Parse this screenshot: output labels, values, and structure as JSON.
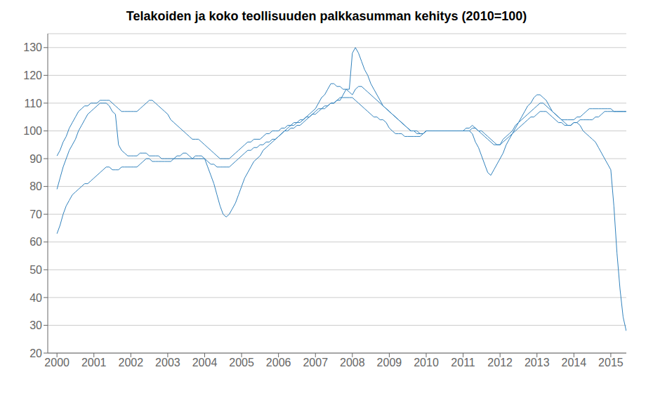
{
  "chart_data": {
    "type": "line",
    "title": "Telakoiden ja koko teollisuuden palkkasumman kehitys  (2010=100)",
    "x": [
      2000.0,
      2000.083,
      2000.167,
      2000.25,
      2000.333,
      2000.417,
      2000.5,
      2000.583,
      2000.667,
      2000.75,
      2000.833,
      2000.917,
      2001.0,
      2001.083,
      2001.167,
      2001.25,
      2001.333,
      2001.417,
      2001.5,
      2001.583,
      2001.667,
      2001.75,
      2001.833,
      2001.917,
      2002.0,
      2002.083,
      2002.167,
      2002.25,
      2002.333,
      2002.417,
      2002.5,
      2002.583,
      2002.667,
      2002.75,
      2002.833,
      2002.917,
      2003.0,
      2003.083,
      2003.167,
      2003.25,
      2003.333,
      2003.417,
      2003.5,
      2003.583,
      2003.667,
      2003.75,
      2003.833,
      2003.917,
      2004.0,
      2004.083,
      2004.167,
      2004.25,
      2004.333,
      2004.417,
      2004.5,
      2004.583,
      2004.667,
      2004.75,
      2004.833,
      2004.917,
      2005.0,
      2005.083,
      2005.167,
      2005.25,
      2005.333,
      2005.417,
      2005.5,
      2005.583,
      2005.667,
      2005.75,
      2005.833,
      2005.917,
      2006.0,
      2006.083,
      2006.167,
      2006.25,
      2006.333,
      2006.417,
      2006.5,
      2006.583,
      2006.667,
      2006.75,
      2006.833,
      2006.917,
      2007.0,
      2007.083,
      2007.167,
      2007.25,
      2007.333,
      2007.417,
      2007.5,
      2007.583,
      2007.667,
      2007.75,
      2007.833,
      2007.917,
      2008.0,
      2008.083,
      2008.167,
      2008.25,
      2008.333,
      2008.417,
      2008.5,
      2008.583,
      2008.667,
      2008.75,
      2008.833,
      2008.917,
      2009.0,
      2009.083,
      2009.167,
      2009.25,
      2009.333,
      2009.417,
      2009.5,
      2009.583,
      2009.667,
      2009.75,
      2009.833,
      2009.917,
      2010.0,
      2010.083,
      2010.167,
      2010.25,
      2010.333,
      2010.417,
      2010.5,
      2010.583,
      2010.667,
      2010.75,
      2010.833,
      2010.917,
      2011.0,
      2011.083,
      2011.167,
      2011.25,
      2011.333,
      2011.417,
      2011.5,
      2011.583,
      2011.667,
      2011.75,
      2011.833,
      2011.917,
      2012.0,
      2012.083,
      2012.167,
      2012.25,
      2012.333,
      2012.417,
      2012.5,
      2012.583,
      2012.667,
      2012.75,
      2012.833,
      2012.917,
      2013.0,
      2013.083,
      2013.167,
      2013.25,
      2013.333,
      2013.417,
      2013.5,
      2013.583,
      2013.667,
      2013.75,
      2013.833,
      2013.917,
      2014.0,
      2014.083,
      2014.167,
      2014.25,
      2014.333,
      2014.417,
      2014.5,
      2014.583,
      2014.667,
      2014.75,
      2014.833,
      2014.917,
      2015.0,
      2015.083,
      2015.167,
      2015.25,
      2015.333,
      2015.417
    ],
    "series": [
      {
        "values": [
          63,
          66,
          70,
          73,
          75,
          77,
          78,
          79,
          80,
          81,
          81,
          82,
          83,
          84,
          85,
          86,
          87,
          87,
          86,
          86,
          86,
          87,
          87,
          87,
          87,
          87,
          87,
          88,
          89,
          90,
          90,
          89,
          89,
          89,
          89,
          89,
          89,
          89,
          90,
          90,
          90,
          90,
          90,
          90,
          90,
          90,
          90,
          90,
          90,
          89,
          88,
          88,
          87,
          87,
          87,
          87,
          87,
          88,
          89,
          90,
          91,
          92,
          93,
          93,
          94,
          94,
          95,
          95,
          96,
          96,
          97,
          97,
          98,
          99,
          100,
          100,
          101,
          101,
          102,
          102,
          103,
          104,
          105,
          106,
          106,
          107,
          108,
          108,
          109,
          110,
          110,
          111,
          112,
          112,
          112,
          112,
          112,
          111,
          110,
          109,
          108,
          107,
          106,
          105,
          105,
          104,
          104,
          103,
          101,
          100,
          99,
          99,
          99,
          98,
          98,
          98,
          98,
          98,
          98,
          99,
          100,
          100,
          100,
          100,
          100,
          100,
          100,
          100,
          100,
          100,
          100,
          100,
          100,
          100,
          100,
          101,
          101,
          100,
          100,
          99,
          98,
          97,
          96,
          95,
          95,
          96,
          97,
          98,
          99,
          100,
          101,
          102,
          103,
          104,
          105,
          105,
          106,
          107,
          107,
          107,
          106,
          105,
          104,
          103,
          103,
          102,
          102,
          102,
          103,
          103,
          104,
          104,
          104,
          104,
          104,
          105,
          105,
          106,
          107,
          107,
          107,
          107,
          107,
          107,
          107,
          107
        ]
      },
      {
        "values": [
          91,
          93,
          96,
          98,
          101,
          103,
          105,
          107,
          108,
          109,
          109,
          110,
          110,
          110,
          111,
          111,
          111,
          111,
          110,
          109,
          108,
          107,
          107,
          107,
          107,
          107,
          107,
          108,
          109,
          110,
          111,
          111,
          110,
          109,
          108,
          107,
          106,
          104,
          103,
          102,
          101,
          100,
          99,
          98,
          97,
          97,
          97,
          96,
          95,
          94,
          93,
          92,
          91,
          90,
          90,
          90,
          90,
          91,
          92,
          93,
          94,
          95,
          96,
          96,
          97,
          97,
          97,
          98,
          99,
          99,
          100,
          100,
          100,
          101,
          101,
          102,
          102,
          103,
          103,
          104,
          104,
          105,
          105,
          106,
          107,
          108,
          108,
          109,
          109,
          110,
          110,
          111,
          111,
          113,
          115,
          114,
          113,
          115,
          116,
          116,
          115,
          114,
          113,
          112,
          111,
          110,
          109,
          108,
          107,
          106,
          105,
          104,
          103,
          102,
          101,
          100,
          100,
          100,
          99,
          99,
          100,
          100,
          100,
          100,
          100,
          100,
          100,
          100,
          100,
          100,
          100,
          100,
          100,
          101,
          101,
          102,
          101,
          100,
          99,
          98,
          97,
          96,
          95,
          95,
          95,
          97,
          98,
          99,
          100,
          102,
          103,
          104,
          105,
          106,
          107,
          108,
          109,
          110,
          110,
          109,
          108,
          107,
          106,
          105,
          104,
          104,
          104,
          104,
          104,
          105,
          105,
          106,
          107,
          108,
          108,
          108,
          108,
          108,
          108,
          108,
          108,
          107,
          107,
          107,
          107,
          107
        ]
      },
      {
        "values": [
          79,
          83,
          87,
          90,
          93,
          95,
          97,
          100,
          102,
          104,
          106,
          107,
          108,
          109,
          110,
          110,
          110,
          109,
          107,
          106,
          95,
          93,
          92,
          91,
          91,
          91,
          91,
          92,
          92,
          92,
          91,
          91,
          91,
          91,
          90,
          90,
          90,
          90,
          90,
          91,
          91,
          92,
          92,
          91,
          90,
          91,
          91,
          91,
          90,
          87,
          84,
          81,
          77,
          73,
          70,
          69,
          70,
          72,
          74,
          77,
          80,
          83,
          85,
          87,
          89,
          90,
          91,
          93,
          94,
          95,
          96,
          97,
          98,
          99,
          100,
          101,
          102,
          102,
          103,
          103,
          104,
          105,
          106,
          107,
          108,
          110,
          112,
          113,
          115,
          117,
          117,
          116,
          116,
          115,
          115,
          115,
          128,
          130,
          128,
          125,
          122,
          120,
          117,
          115,
          113,
          111,
          109,
          108,
          107,
          106,
          105,
          104,
          103,
          102,
          101,
          100,
          100,
          99,
          99,
          99,
          100,
          100,
          100,
          100,
          100,
          100,
          100,
          100,
          100,
          100,
          100,
          100,
          100,
          100,
          100,
          99,
          96,
          94,
          91,
          88,
          85,
          84,
          86,
          88,
          90,
          92,
          95,
          97,
          99,
          101,
          103,
          105,
          107,
          109,
          110,
          112,
          113,
          113,
          112,
          111,
          109,
          107,
          106,
          105,
          104,
          103,
          102,
          102,
          103,
          103,
          102,
          100,
          99,
          98,
          97,
          96,
          94,
          92,
          90,
          88,
          86,
          73,
          56,
          43,
          33,
          28
        ]
      }
    ],
    "xlim": [
      1999.75,
      2015.42
    ],
    "xticks": [
      2000,
      2001,
      2002,
      2003,
      2004,
      2005,
      2006,
      2007,
      2008,
      2009,
      2010,
      2011,
      2012,
      2013,
      2014,
      2015
    ],
    "ylim": [
      20,
      135
    ],
    "yticks": [
      20,
      30,
      40,
      50,
      60,
      70,
      80,
      90,
      100,
      110,
      120,
      130
    ],
    "grid": "y"
  }
}
